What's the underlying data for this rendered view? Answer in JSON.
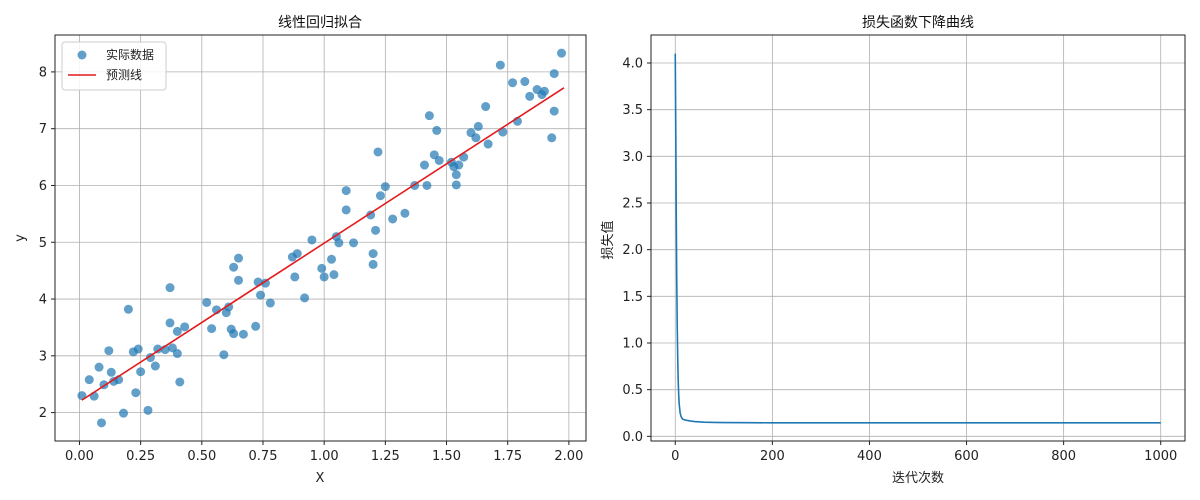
{
  "chart_data": [
    {
      "type": "scatter",
      "title": "线性回归拟合",
      "xlabel": "X",
      "ylabel": "y",
      "xlim": [
        -0.1,
        2.07
      ],
      "ylim": [
        1.5,
        8.65
      ],
      "xticks": [
        "0.00",
        "0.25",
        "0.50",
        "0.75",
        "1.00",
        "1.25",
        "1.50",
        "1.75",
        "2.00"
      ],
      "yticks": [
        "2",
        "3",
        "4",
        "5",
        "6",
        "7",
        "8"
      ],
      "grid": true,
      "legend_position": "top-left",
      "point_color": "#1f77b4",
      "line_color": "#e41a1c",
      "series": [
        {
          "name": "实际数据",
          "kind": "scatter",
          "points": [
            [
              0.01,
              2.3
            ],
            [
              0.04,
              2.58
            ],
            [
              0.06,
              2.29
            ],
            [
              0.08,
              2.8
            ],
            [
              0.09,
              1.82
            ],
            [
              0.1,
              2.49
            ],
            [
              0.12,
              3.09
            ],
            [
              0.13,
              2.71
            ],
            [
              0.14,
              2.55
            ],
            [
              0.16,
              2.58
            ],
            [
              0.18,
              1.99
            ],
            [
              0.2,
              3.82
            ],
            [
              0.22,
              3.07
            ],
            [
              0.23,
              2.35
            ],
            [
              0.24,
              3.12
            ],
            [
              0.25,
              2.72
            ],
            [
              0.28,
              2.04
            ],
            [
              0.29,
              2.97
            ],
            [
              0.31,
              2.82
            ],
            [
              0.32,
              3.12
            ],
            [
              0.35,
              3.11
            ],
            [
              0.37,
              3.58
            ],
            [
              0.37,
              4.2
            ],
            [
              0.38,
              3.14
            ],
            [
              0.4,
              3.43
            ],
            [
              0.4,
              3.04
            ],
            [
              0.41,
              2.54
            ],
            [
              0.43,
              3.51
            ],
            [
              0.52,
              3.94
            ],
            [
              0.54,
              3.48
            ],
            [
              0.56,
              3.81
            ],
            [
              0.59,
              3.02
            ],
            [
              0.6,
              3.76
            ],
            [
              0.61,
              3.86
            ],
            [
              0.62,
              3.47
            ],
            [
              0.63,
              3.39
            ],
            [
              0.63,
              4.56
            ],
            [
              0.65,
              4.72
            ],
            [
              0.65,
              4.33
            ],
            [
              0.67,
              3.38
            ],
            [
              0.72,
              3.52
            ],
            [
              0.73,
              4.3
            ],
            [
              0.74,
              4.07
            ],
            [
              0.76,
              4.28
            ],
            [
              0.78,
              3.93
            ],
            [
              0.87,
              4.74
            ],
            [
              0.88,
              4.39
            ],
            [
              0.89,
              4.8
            ],
            [
              0.92,
              4.02
            ],
            [
              0.95,
              5.04
            ],
            [
              0.99,
              4.54
            ],
            [
              1.0,
              4.39
            ],
            [
              1.03,
              4.7
            ],
            [
              1.04,
              4.43
            ],
            [
              1.05,
              5.1
            ],
            [
              1.06,
              4.99
            ],
            [
              1.09,
              5.91
            ],
            [
              1.09,
              5.57
            ],
            [
              1.12,
              4.99
            ],
            [
              1.19,
              5.48
            ],
            [
              1.2,
              4.8
            ],
            [
              1.2,
              4.61
            ],
            [
              1.21,
              5.21
            ],
            [
              1.22,
              6.59
            ],
            [
              1.23,
              5.82
            ],
            [
              1.25,
              5.98
            ],
            [
              1.28,
              5.41
            ],
            [
              1.33,
              5.51
            ],
            [
              1.37,
              6.0
            ],
            [
              1.41,
              6.36
            ],
            [
              1.42,
              6.0
            ],
            [
              1.43,
              7.23
            ],
            [
              1.45,
              6.54
            ],
            [
              1.46,
              6.97
            ],
            [
              1.47,
              6.44
            ],
            [
              1.52,
              6.41
            ],
            [
              1.53,
              6.33
            ],
            [
              1.54,
              6.19
            ],
            [
              1.54,
              6.01
            ],
            [
              1.55,
              6.36
            ],
            [
              1.57,
              6.5
            ],
            [
              1.6,
              6.93
            ],
            [
              1.62,
              6.84
            ],
            [
              1.63,
              7.04
            ],
            [
              1.66,
              7.39
            ],
            [
              1.67,
              6.73
            ],
            [
              1.72,
              8.12
            ],
            [
              1.73,
              6.94
            ],
            [
              1.77,
              7.81
            ],
            [
              1.79,
              7.13
            ],
            [
              1.82,
              7.83
            ],
            [
              1.84,
              7.57
            ],
            [
              1.87,
              7.69
            ],
            [
              1.89,
              7.6
            ],
            [
              1.9,
              7.66
            ],
            [
              1.93,
              6.84
            ],
            [
              1.94,
              7.31
            ],
            [
              1.94,
              7.97
            ],
            [
              1.97,
              8.33
            ]
          ]
        },
        {
          "name": "预测线",
          "kind": "line",
          "points": [
            [
              0.01,
              2.22
            ],
            [
              1.98,
              7.72
            ]
          ]
        }
      ]
    },
    {
      "type": "line",
      "title": "损失函数下降曲线",
      "xlabel": "迭代次数",
      "ylabel": "损失值",
      "xlim": [
        -50,
        1050
      ],
      "ylim": [
        -0.05,
        4.3
      ],
      "xticks": [
        "0",
        "200",
        "400",
        "600",
        "800",
        "1000"
      ],
      "yticks": [
        "0.0",
        "0.5",
        "1.0",
        "1.5",
        "2.0",
        "2.5",
        "3.0",
        "3.5",
        "4.0"
      ],
      "grid": true,
      "line_color": "#1f77b4",
      "series": [
        {
          "kind": "line",
          "points": [
            [
              0,
              4.1
            ],
            [
              1,
              3.3
            ],
            [
              2,
              2.4
            ],
            [
              3,
              1.7
            ],
            [
              4,
              1.2
            ],
            [
              5,
              0.85
            ],
            [
              6,
              0.6
            ],
            [
              7,
              0.45
            ],
            [
              8,
              0.35
            ],
            [
              10,
              0.25
            ],
            [
              12,
              0.21
            ],
            [
              15,
              0.185
            ],
            [
              20,
              0.175
            ],
            [
              30,
              0.165
            ],
            [
              40,
              0.158
            ],
            [
              60,
              0.152
            ],
            [
              80,
              0.149
            ],
            [
              100,
              0.147
            ],
            [
              150,
              0.146
            ],
            [
              200,
              0.145
            ],
            [
              400,
              0.145
            ],
            [
              600,
              0.145
            ],
            [
              800,
              0.145
            ],
            [
              1000,
              0.145
            ]
          ]
        }
      ]
    }
  ]
}
